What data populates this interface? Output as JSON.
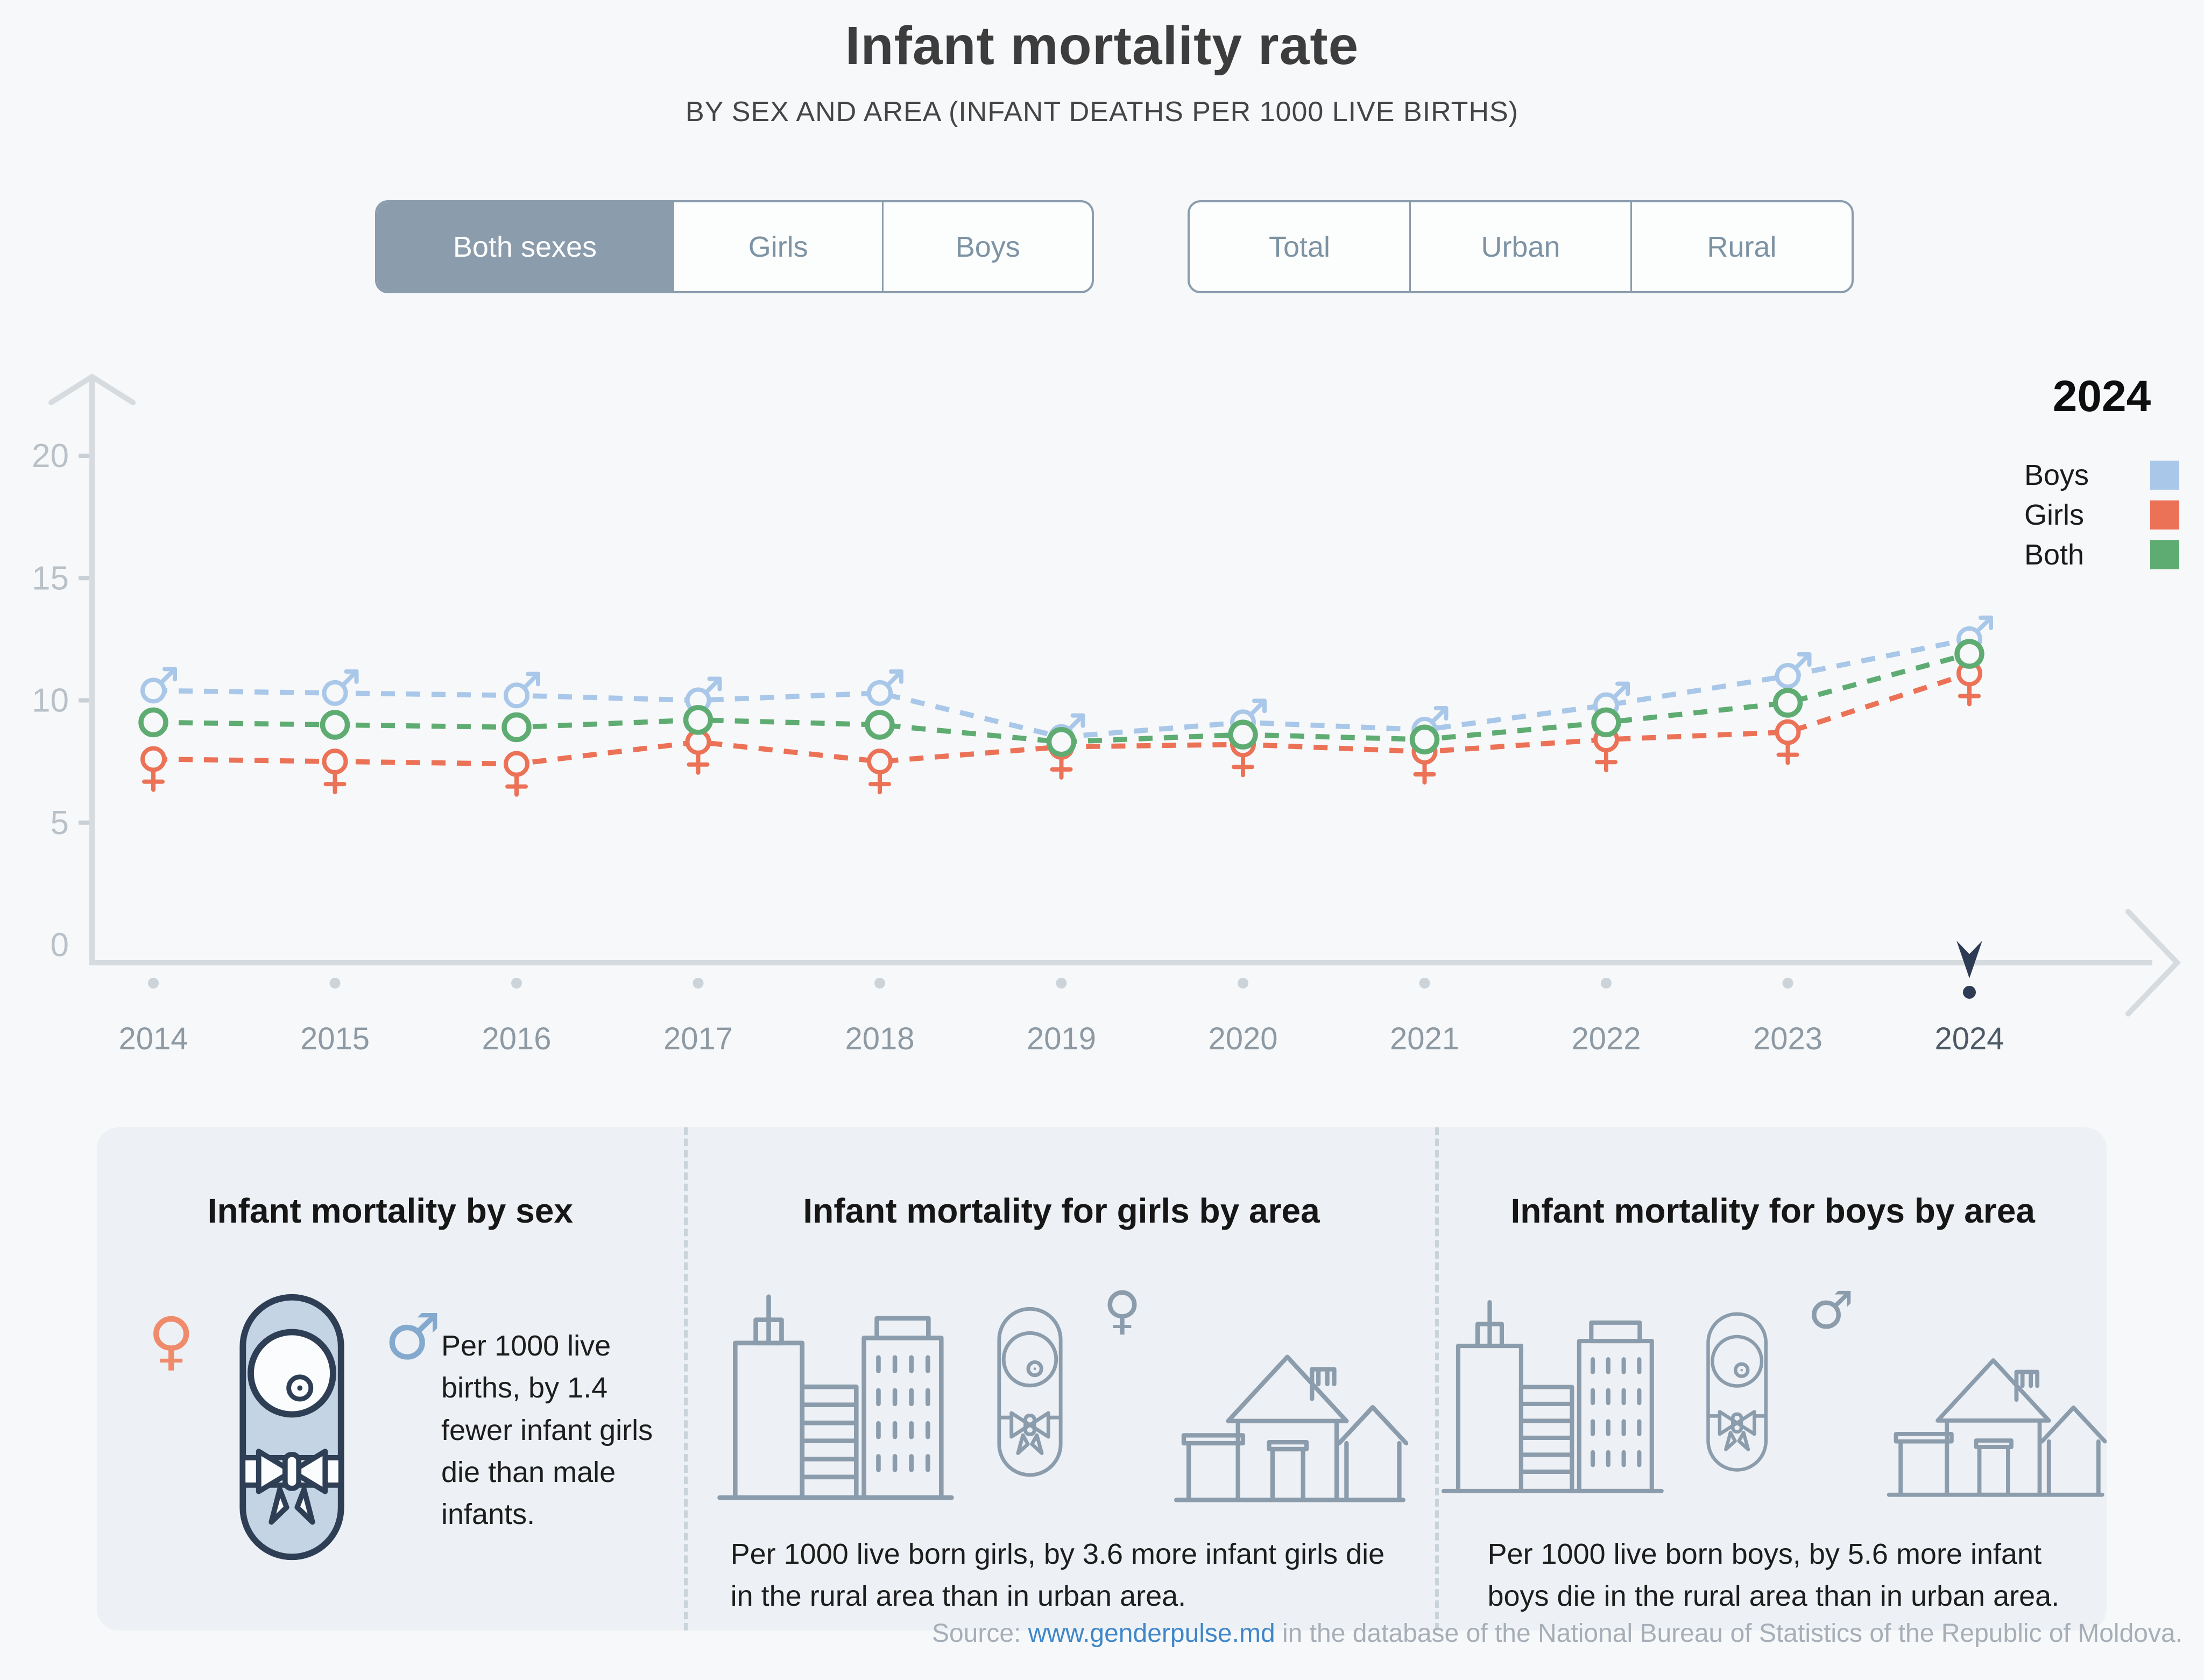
{
  "header": {
    "title": "Infant mortality rate",
    "subtitle": "BY SEX AND AREA (INFANT DEATHS PER 1000 LIVE BIRTHS)"
  },
  "toggles": {
    "sex": {
      "options": [
        "Both sexes",
        "Girls",
        "Boys"
      ],
      "selected": "Both sexes"
    },
    "area": {
      "options": [
        "Total",
        "Urban",
        "Rural"
      ],
      "selected": ""
    }
  },
  "legend": {
    "year": "2024",
    "items": [
      {
        "label": "Boys",
        "color": "#a9c7e8"
      },
      {
        "label": "Girls",
        "color": "#ec7257"
      },
      {
        "label": "Both",
        "color": "#5fac73"
      }
    ]
  },
  "chart_data": {
    "type": "line",
    "title": "Infant mortality rate by sex (infant deaths per 1000 live births)",
    "x": [
      2014,
      2015,
      2016,
      2017,
      2018,
      2019,
      2020,
      2021,
      2022,
      2023,
      2024
    ],
    "series": [
      {
        "name": "Boys",
        "marker": "male",
        "color": "#a9c7e8",
        "values": [
          10.4,
          10.3,
          10.2,
          10.0,
          10.3,
          8.5,
          9.1,
          8.8,
          9.8,
          11.0,
          12.5
        ]
      },
      {
        "name": "Girls",
        "marker": "female",
        "color": "#ec7257",
        "values": [
          7.6,
          7.5,
          7.4,
          8.3,
          7.5,
          8.1,
          8.2,
          7.9,
          8.4,
          8.7,
          11.1
        ]
      },
      {
        "name": "Both",
        "marker": "circle",
        "color": "#5fac73",
        "values": [
          9.1,
          9.0,
          8.9,
          9.2,
          9.0,
          8.3,
          8.6,
          8.4,
          9.1,
          9.9,
          11.9
        ]
      }
    ],
    "ylim": [
      0,
      20
    ],
    "yticks": [
      0,
      5,
      10,
      15,
      20
    ],
    "xlabel": "",
    "ylabel": "",
    "grid": false,
    "line_style": "dashed",
    "legend_position": "top-right",
    "highlight_year": 2024
  },
  "cards": [
    {
      "title": "Infant mortality by sex",
      "text": "Per 1000 live births, by 1.4 fewer infant girls die than male infants.",
      "icons": [
        "female-symbol",
        "baby",
        "male-symbol"
      ]
    },
    {
      "title": "Infant mortality for girls by area",
      "text": "Per 1000 live born girls, by 3.6 more infant girls die in the rural area than in urban area.",
      "icons": [
        "city",
        "baby",
        "female-symbol",
        "houses"
      ]
    },
    {
      "title": "Infant mortality for boys by area",
      "text": "Per 1000 live born boys, by 5.6 more infant boys die in the rural area than in urban area.",
      "icons": [
        "city",
        "baby",
        "male-symbol",
        "houses"
      ]
    }
  ],
  "footer": {
    "source_prefix": "Source: ",
    "source_link": "www.genderpulse.md",
    "source_suffix": " in the database of the National Bureau of Statistics of the Republic of Moldova."
  }
}
